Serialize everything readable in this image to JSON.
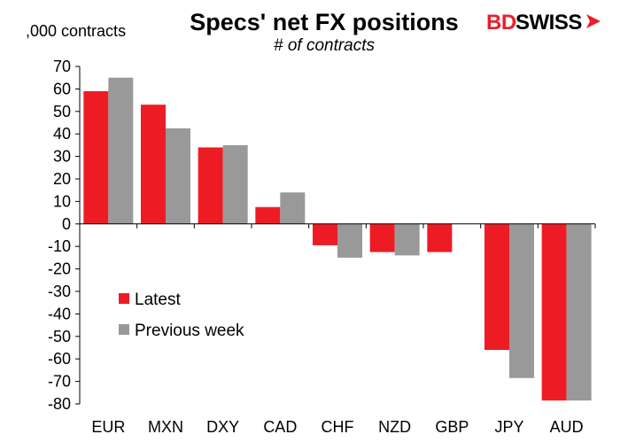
{
  "header": {
    "title": "Specs' net FX positions",
    "subtitle": "# of contracts",
    "unit_label": ",000 contracts"
  },
  "logo": {
    "text_bd": "BD",
    "text_swiss": "SWISS",
    "brand_color": "#e8202a"
  },
  "colors": {
    "latest": "#ed1c24",
    "previous": "#999999",
    "axis": "#000000"
  },
  "chart_data": {
    "type": "bar",
    "title": "Specs' net FX positions",
    "subtitle": "# of contracts",
    "ylabel": ",000 contracts",
    "xlabel": "",
    "ylim": [
      -80,
      70
    ],
    "yticks": [
      70,
      60,
      50,
      40,
      30,
      20,
      10,
      0,
      -10,
      -20,
      -30,
      -40,
      -50,
      -60,
      -70,
      -80
    ],
    "categories": [
      "EUR",
      "MXN",
      "DXY",
      "CAD",
      "CHF",
      "NZD",
      "GBP",
      "JPY",
      "AUD"
    ],
    "series": [
      {
        "name": "Latest",
        "values": [
          59,
          53,
          34,
          7.5,
          -9.5,
          -12.5,
          -12.5,
          -56,
          -78.5
        ]
      },
      {
        "name": "Previous week",
        "values": [
          65,
          42.5,
          35,
          14,
          -15,
          -14,
          null,
          -68.5,
          -78.5
        ]
      }
    ],
    "grid": false,
    "legend": "lower-left"
  }
}
